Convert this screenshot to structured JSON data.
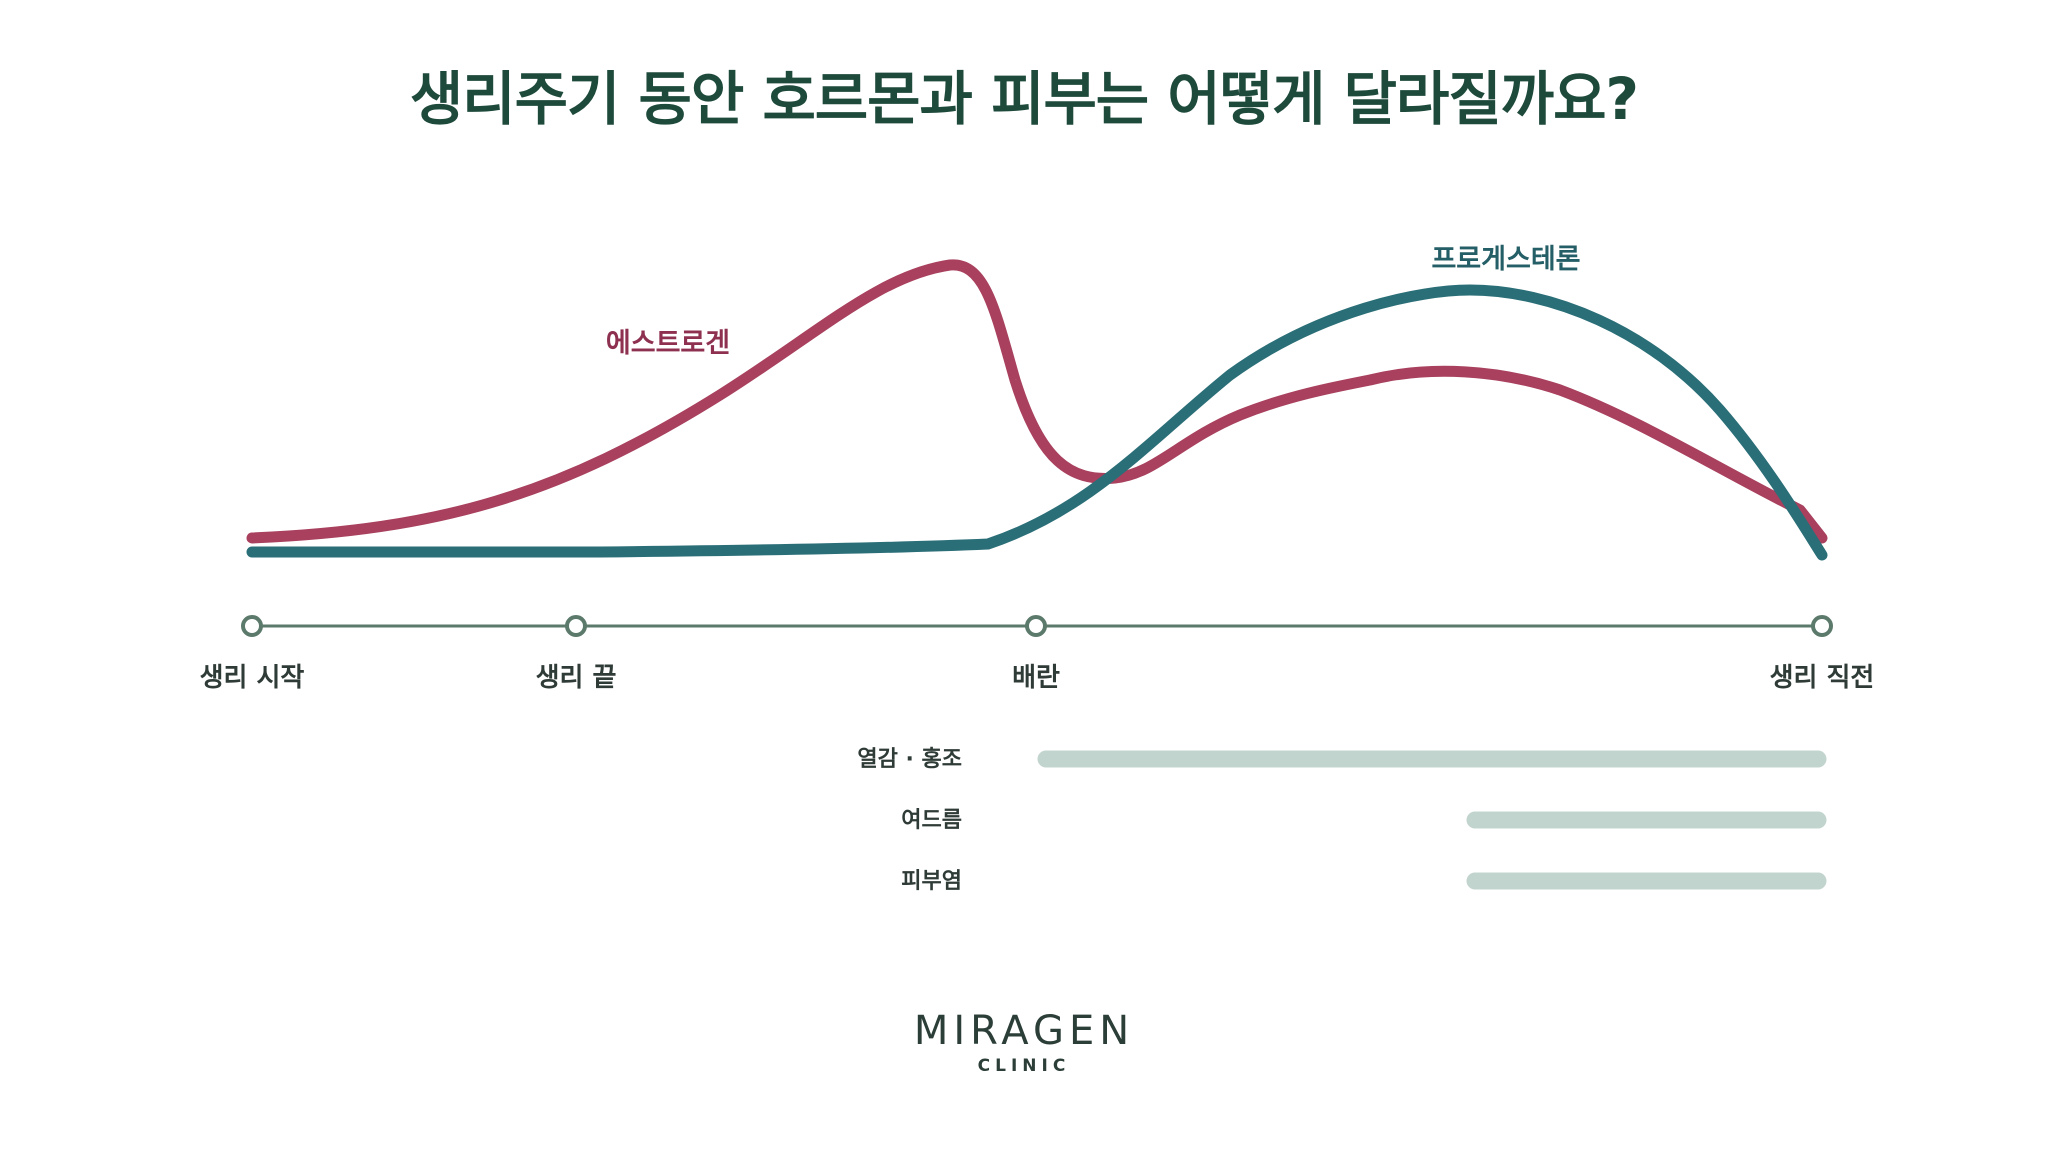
{
  "title": "생리주기 동안 호르몬과 피부는 어떻게 달라질까요?",
  "colors": {
    "title": "#1e4a3c",
    "estrogen": "#a8405e",
    "progesterone": "#2a6e77",
    "timeline": "#5c7a6c",
    "bar": "#c2d4ce",
    "text": "#2e3b36"
  },
  "series": {
    "estrogen": {
      "label": "에스트로겐"
    },
    "progesterone": {
      "label": "프로게스테론"
    }
  },
  "timeline": {
    "phases": [
      {
        "label": "생리 시작"
      },
      {
        "label": "생리 끝"
      },
      {
        "label": "배란"
      },
      {
        "label": "생리 직전"
      }
    ]
  },
  "symptoms": [
    {
      "label": "열감 · 홍조",
      "from": "배란",
      "to": "생리 직전"
    },
    {
      "label": "여드름",
      "from": "배란 이후",
      "to": "생리 직전"
    },
    {
      "label": "피부염",
      "from": "배란 이후",
      "to": "생리 직전"
    }
  ],
  "logo": {
    "word": "MIRAGEN",
    "sub": "CLINIC"
  }
}
